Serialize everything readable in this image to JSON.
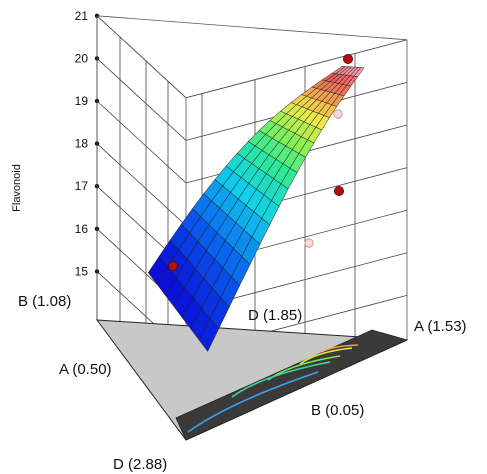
{
  "chart_data": {
    "type": "3d-mixture-surface",
    "zlabel": "Flavonoid",
    "zlim": [
      14,
      21
    ],
    "z_ticks": [
      "15",
      "16",
      "17",
      "18",
      "19",
      "20",
      "21"
    ],
    "vertices": {
      "back_top": "B (1.08)",
      "left": "A (0.50)",
      "right": "A (1.53)",
      "center": "D (1.85)",
      "front_low": "B (0.05)",
      "bottom": "D (2.88)"
    },
    "design_points": [
      {
        "label": "left high",
        "z": 14.6,
        "above_surface": true
      },
      {
        "label": "right mid",
        "z": 16.4,
        "above_surface": true
      },
      {
        "label": "top peak",
        "z": 20.4,
        "above_surface": true
      },
      {
        "label": "right low",
        "z": 14.9,
        "above_surface": false
      },
      {
        "label": "top near",
        "z": 18.9,
        "above_surface": false
      }
    ],
    "surface_range": [
      13.2,
      20.6
    ],
    "contour_colors": [
      "#f7a23a",
      "#e6e83b",
      "#7ee84a",
      "#3cd6a6",
      "#3aa0f0"
    ],
    "surface_colormap": [
      "#0a10d8",
      "#0a6cf0",
      "#10d0e8",
      "#2ee89a",
      "#8ef050",
      "#f0e84a",
      "#f0a050",
      "#ee5a5a",
      "#f4b0c0"
    ]
  }
}
